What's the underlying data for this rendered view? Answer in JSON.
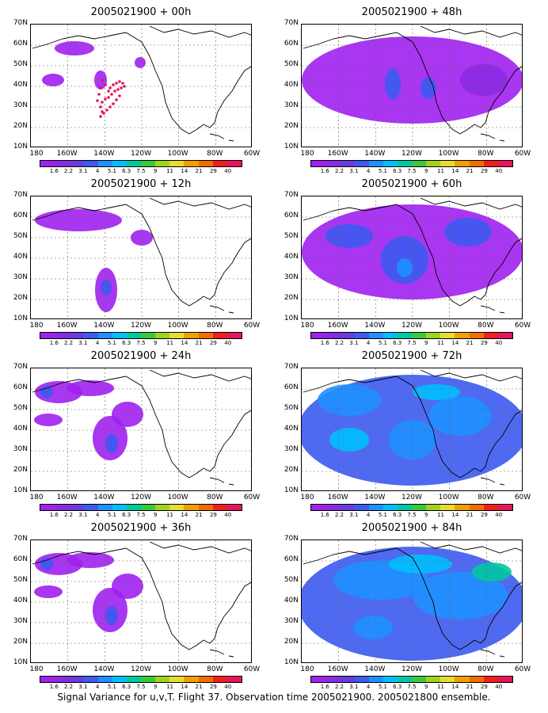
{
  "panels": [
    {
      "title": "2005021900 + 00h",
      "lead": "00h",
      "level": 0
    },
    {
      "title": "2005021900 + 48h",
      "lead": "48h",
      "level": 3
    },
    {
      "title": "2005021900 + 12h",
      "lead": "12h",
      "level": 1
    },
    {
      "title": "2005021900 + 60h",
      "lead": "60h",
      "level": 4
    },
    {
      "title": "2005021900 + 24h",
      "lead": "24h",
      "level": 2
    },
    {
      "title": "2005021900 + 72h",
      "lead": "72h",
      "level": 5
    },
    {
      "title": "2005021900 + 36h",
      "lead": "36h",
      "level": 2
    },
    {
      "title": "2005021900 + 84h",
      "lead": "84h",
      "level": 6
    }
  ],
  "lat_labels": [
    "70N",
    "60N",
    "50N",
    "40N",
    "30N",
    "20N",
    "10N"
  ],
  "lon_labels": [
    "180",
    "160W",
    "140W",
    "120W",
    "100W",
    "80W",
    "60W"
  ],
  "colorbar": {
    "labels": [
      "1.6",
      "2.2",
      "3.1",
      "4",
      "5.1",
      "6.3",
      "7.5",
      "9",
      "11",
      "14",
      "21",
      "29",
      "40"
    ],
    "colors": [
      "#a020f0",
      "#8a2be2",
      "#6a3bd8",
      "#3c5af0",
      "#1e90ff",
      "#00bfff",
      "#00c8a0",
      "#3cc83c",
      "#a0d220",
      "#e6dc32",
      "#f0a000",
      "#f06e00",
      "#f01e1e",
      "#e6145a"
    ]
  },
  "caption": "Signal Variance for u,v,T. Flight 37. Observation time 2005021900. 2005021800 ensemble.",
  "flight_track_color": "#e6145a"
}
